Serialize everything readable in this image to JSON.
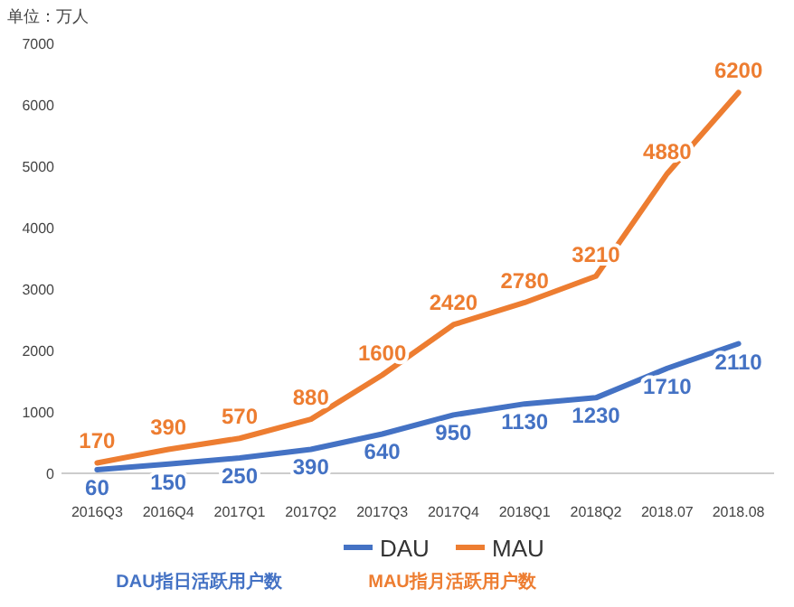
{
  "chart_data": {
    "type": "line",
    "ylabel": "单位：万人",
    "categories": [
      "2016Q3",
      "2016Q4",
      "2017Q1",
      "2017Q2",
      "2017Q3",
      "2017Q4",
      "2018Q1",
      "2018Q2",
      "2018.07",
      "2018.08"
    ],
    "series": [
      {
        "name": "DAU",
        "color": "#4472c4",
        "values": [
          60,
          150,
          250,
          390,
          640,
          950,
          1130,
          1230,
          1710,
          2110
        ]
      },
      {
        "name": "MAU",
        "color": "#ed7d31",
        "values": [
          170,
          390,
          570,
          880,
          1600,
          2420,
          2780,
          3210,
          4880,
          6200
        ]
      }
    ],
    "ylim": [
      0,
      7000
    ],
    "yticks": [
      0,
      1000,
      2000,
      3000,
      4000,
      5000,
      6000,
      7000
    ],
    "grid": false,
    "legend": "bottom",
    "marker": "none",
    "line_style": "solid",
    "data_labels": true,
    "annotations": [
      "DAU指日活跃用户数",
      "MAU指月活跃用户数"
    ]
  }
}
